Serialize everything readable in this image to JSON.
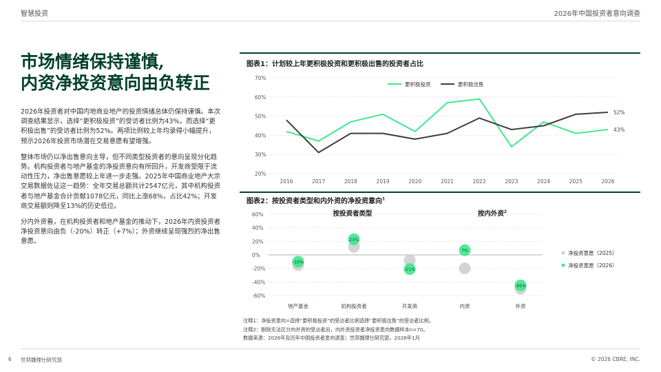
{
  "header": {
    "left": "智慧投资",
    "right": "2026年中国投资者意向调查"
  },
  "title_lines": [
    "市场情绪保持谨慎,",
    "内资净投资意向由负转正"
  ],
  "paragraphs": [
    "2026年投资者对中国内地商业地产的投资情绪总体仍保持谨慎。本次调查结果显示，选择“更积极投资”的受访者比例为43%，而选择“更积极出售”的受访者比例为52%。两项比例较上年均录得小幅提升，预示2026年投资市场潜在交易意愿有望增强。",
    "整体市场仍以净出售意向主导，但不同类型投资者的意向呈现分化趋势。机构投资者与地产基金的净投资意向有所回升，开发商受限于流动性压力，净出售意愿较上年进一步走强。2025年中国商业地产大宗交易数据佐证这一趋势：全年交易总额共计2547亿元，其中机构投资者与地产基金合计贡献1078亿元，同比上涨68%，占比42%；开发商交易额则降至13%的历史低位。",
    "分内外资看，在机构投资者和地产基金的推动下，2026年内资投资者净投资意向由负（-20%）转正（+7%）；外资继续呈现强烈的净出售意愿。"
  ],
  "chart_data": [
    {
      "type": "line",
      "title": "图表1：计划较上年更积极投资和更积极出售的投资者占比",
      "x": [
        "2016",
        "2017",
        "2018",
        "2019",
        "2020",
        "2021",
        "2022",
        "2023",
        "2024",
        "2025",
        "2026"
      ],
      "series": [
        {
          "name": "更积极投资",
          "values": [
            42,
            37,
            47,
            51,
            42,
            57,
            59,
            34,
            47,
            41,
            43
          ],
          "color": "#3ee88c"
        },
        {
          "name": "更积极出售",
          "values": [
            48,
            31,
            41,
            41,
            38,
            41,
            49,
            43,
            45,
            51,
            52
          ],
          "color": "#3c3c3c"
        }
      ],
      "end_labels": [
        "43%",
        "52%"
      ],
      "ylim": [
        20,
        70
      ],
      "yticks": [
        "20%",
        "30%",
        "40%",
        "50%",
        "60%",
        "70%"
      ],
      "xlabel": "",
      "ylabel": "",
      "legend": "top-center"
    },
    {
      "type": "scatter",
      "title": "图表2：按投资者类型和内外资的净投资意向",
      "title_sup": "1",
      "group_labels": [
        {
          "text": "按投资者类型",
          "sup": ""
        },
        {
          "text": "按内外资",
          "sup": "2"
        }
      ],
      "categories": [
        "地产基金",
        "机构投资者",
        "开发商",
        "内资",
        "外资"
      ],
      "series": [
        {
          "name": "净投资意愿（2025）",
          "values": [
            -15,
            12,
            -8,
            -20,
            -50
          ],
          "color": "#cccccc"
        },
        {
          "name": "净投资意愿（2026）",
          "values": [
            -10,
            23,
            -21,
            7,
            -45
          ],
          "color": "#3ee88c"
        }
      ],
      "point_labels": [
        "-10%",
        "23%",
        "-21%",
        "7%",
        "-45%"
      ],
      "ylim": [
        -60,
        60
      ],
      "yticks": [
        "-60%",
        "-40%",
        "-20%",
        "0%",
        "20%",
        "40%",
        "60%"
      ],
      "legend": "right"
    }
  ],
  "notes": [
    "注释1：净投资意向=选择“更积极投资”的受访者比例选择“更积极出售”的受访者比例。",
    "注释2：剔除无法区分内外资的受访者后，内外资投资者净投资意向数据样本n=70。",
    "数据来源：2026年及历年中国投资者意向调查；世邦魏理仕研究部，2026年1月"
  ],
  "footer": {
    "page": "6",
    "left": "世邦魏理仕研究部",
    "right": "© 2026 CBRE, INC."
  },
  "colors": {
    "green": "#3ee88c",
    "dark": "#3c3c3c",
    "grey": "#cccccc",
    "brand": "#003f2d"
  }
}
